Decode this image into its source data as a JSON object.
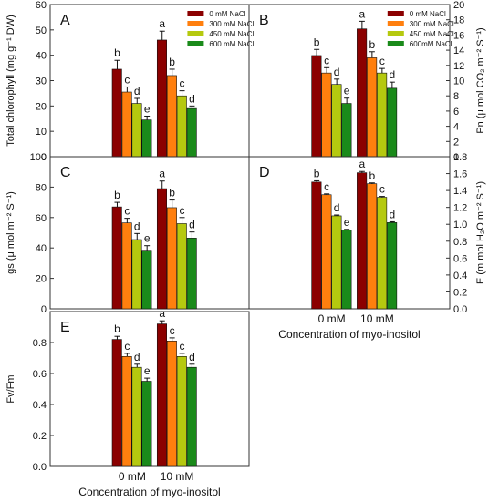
{
  "colors": {
    "0 mM NaCl": "#8b0000",
    "300 mM NaCl": "#ff7f0e",
    "450 mM NaCl": "#b5c90f",
    "600 mM NaCl": "#1a8a1a"
  },
  "chart_data": [
    {
      "id": "A",
      "type": "bar",
      "panel_label": "A",
      "ylabel": "Total chlorophyll (mg g⁻¹ DW)",
      "ylim": [
        0,
        60
      ],
      "yticks": [
        0,
        10,
        20,
        30,
        40,
        50,
        60
      ],
      "categories": [
        "0 mM",
        "10 mM"
      ],
      "xticks_shown": false,
      "legend_labels": [
        "0 mM NaCl",
        "300 mM NaCl",
        "450 mM NaCl",
        "600 mM NaCl"
      ],
      "series": [
        {
          "name": "0 mM NaCl",
          "values": [
            34.5,
            46
          ],
          "errors": [
            3.5,
            3.5
          ],
          "letters": [
            "b",
            "a"
          ]
        },
        {
          "name": "300 mM NaCl",
          "values": [
            25.5,
            32
          ],
          "errors": [
            2,
            2.5
          ],
          "letters": [
            "c",
            "b"
          ]
        },
        {
          "name": "450 mM NaCl",
          "values": [
            21,
            24
          ],
          "errors": [
            2,
            2
          ],
          "letters": [
            "d",
            "c"
          ]
        },
        {
          "name": "600 mM NaCl",
          "values": [
            14.5,
            19
          ],
          "errors": [
            1.5,
            1
          ],
          "letters": [
            "e",
            "d"
          ]
        }
      ]
    },
    {
      "id": "B",
      "type": "bar",
      "panel_label": "B",
      "ylabel": "Pn (μ mol CO₂ m⁻² S⁻¹)",
      "ylim": [
        0,
        20
      ],
      "yticks": [
        0,
        2,
        4,
        6,
        8,
        10,
        12,
        14,
        16,
        18,
        20
      ],
      "categories": [
        "0 mM",
        "10 mM"
      ],
      "xticks_shown": false,
      "legend_labels": [
        "0 mM NaCl",
        "300 mM NaCl",
        "450 mM NaCl",
        "600mM NaCl"
      ],
      "series": [
        {
          "name": "0 mM NaCl",
          "values": [
            13.3,
            16.8
          ],
          "errors": [
            0.8,
            1
          ],
          "letters": [
            "b",
            "a"
          ]
        },
        {
          "name": "300 mM NaCl",
          "values": [
            11,
            13
          ],
          "errors": [
            0.7,
            0.8
          ],
          "letters": [
            "c",
            "b"
          ]
        },
        {
          "name": "450 mM NaCl",
          "values": [
            9.5,
            11
          ],
          "errors": [
            0.7,
            0.6
          ],
          "letters": [
            "d",
            "c"
          ]
        },
        {
          "name": "600 mM NaCl",
          "values": [
            7,
            9
          ],
          "errors": [
            0.7,
            0.8
          ],
          "letters": [
            "e",
            "d"
          ]
        }
      ]
    },
    {
      "id": "C",
      "type": "bar",
      "panel_label": "C",
      "ylabel": "gs (μ mol m⁻² S⁻¹)",
      "ylim": [
        0,
        100
      ],
      "yticks": [
        0,
        20,
        40,
        60,
        80,
        100
      ],
      "categories": [
        "0 mM",
        "10 mM"
      ],
      "xticks_shown": false,
      "series": [
        {
          "name": "0 mM NaCl",
          "values": [
            67,
            79
          ],
          "errors": [
            3,
            5
          ],
          "letters": [
            "b",
            "a"
          ]
        },
        {
          "name": "300 mM NaCl",
          "values": [
            56.5,
            66.5
          ],
          "errors": [
            3,
            5
          ],
          "letters": [
            "c",
            "b"
          ]
        },
        {
          "name": "450 mM NaCl",
          "values": [
            45.5,
            56
          ],
          "errors": [
            4,
            4
          ],
          "letters": [
            "d",
            "c"
          ]
        },
        {
          "name": "600 mM NaCl",
          "values": [
            38.5,
            46.5
          ],
          "errors": [
            3,
            4
          ],
          "letters": [
            "e",
            "d"
          ]
        }
      ]
    },
    {
      "id": "D",
      "type": "bar",
      "panel_label": "D",
      "ylabel": "E (m mol H₂O m⁻² S⁻¹)",
      "ylim": [
        0,
        1.8
      ],
      "yticks": [
        0.0,
        0.2,
        0.4,
        0.6,
        0.8,
        1.0,
        1.2,
        1.4,
        1.6,
        1.8
      ],
      "categories": [
        "0 mM",
        "10 mM"
      ],
      "xticks_shown": true,
      "xlabel": "Concentration of myo-inositol",
      "series": [
        {
          "name": "0 mM NaCl",
          "values": [
            1.5,
            1.61
          ],
          "errors": [
            0.015,
            0.015
          ],
          "letters": [
            "b",
            "a"
          ]
        },
        {
          "name": "300 mM NaCl",
          "values": [
            1.35,
            1.48
          ],
          "errors": [
            0.01,
            0.01
          ],
          "letters": [
            "c",
            "b"
          ]
        },
        {
          "name": "450 mM NaCl",
          "values": [
            1.1,
            1.32
          ],
          "errors": [
            0.01,
            0.01
          ],
          "letters": [
            "d",
            "c"
          ]
        },
        {
          "name": "600 mM NaCl",
          "values": [
            0.93,
            1.02
          ],
          "errors": [
            0.01,
            0.01
          ],
          "letters": [
            "e",
            "d"
          ]
        }
      ]
    },
    {
      "id": "E",
      "type": "bar",
      "panel_label": "E",
      "ylabel": "Fv/Fm",
      "ylim": [
        0,
        1.0
      ],
      "yticks": [
        0.0,
        0.2,
        0.4,
        0.6,
        0.8
      ],
      "categories": [
        "0 mM",
        "10 mM"
      ],
      "xticks_shown": true,
      "xlabel": "Concentration of myo-inositol",
      "series": [
        {
          "name": "0 mM NaCl",
          "values": [
            0.82,
            0.92
          ],
          "errors": [
            0.02,
            0.02
          ],
          "letters": [
            "b",
            "a"
          ]
        },
        {
          "name": "300 mM NaCl",
          "values": [
            0.71,
            0.81
          ],
          "errors": [
            0.02,
            0.02
          ],
          "letters": [
            "c",
            "c"
          ]
        },
        {
          "name": "450 mM NaCl",
          "values": [
            0.64,
            0.71
          ],
          "errors": [
            0.02,
            0.02
          ],
          "letters": [
            "d",
            "c"
          ]
        },
        {
          "name": "600 mM NaCl",
          "values": [
            0.55,
            0.64
          ],
          "errors": [
            0.02,
            0.02
          ],
          "letters": [
            "e",
            "d"
          ]
        }
      ]
    }
  ]
}
